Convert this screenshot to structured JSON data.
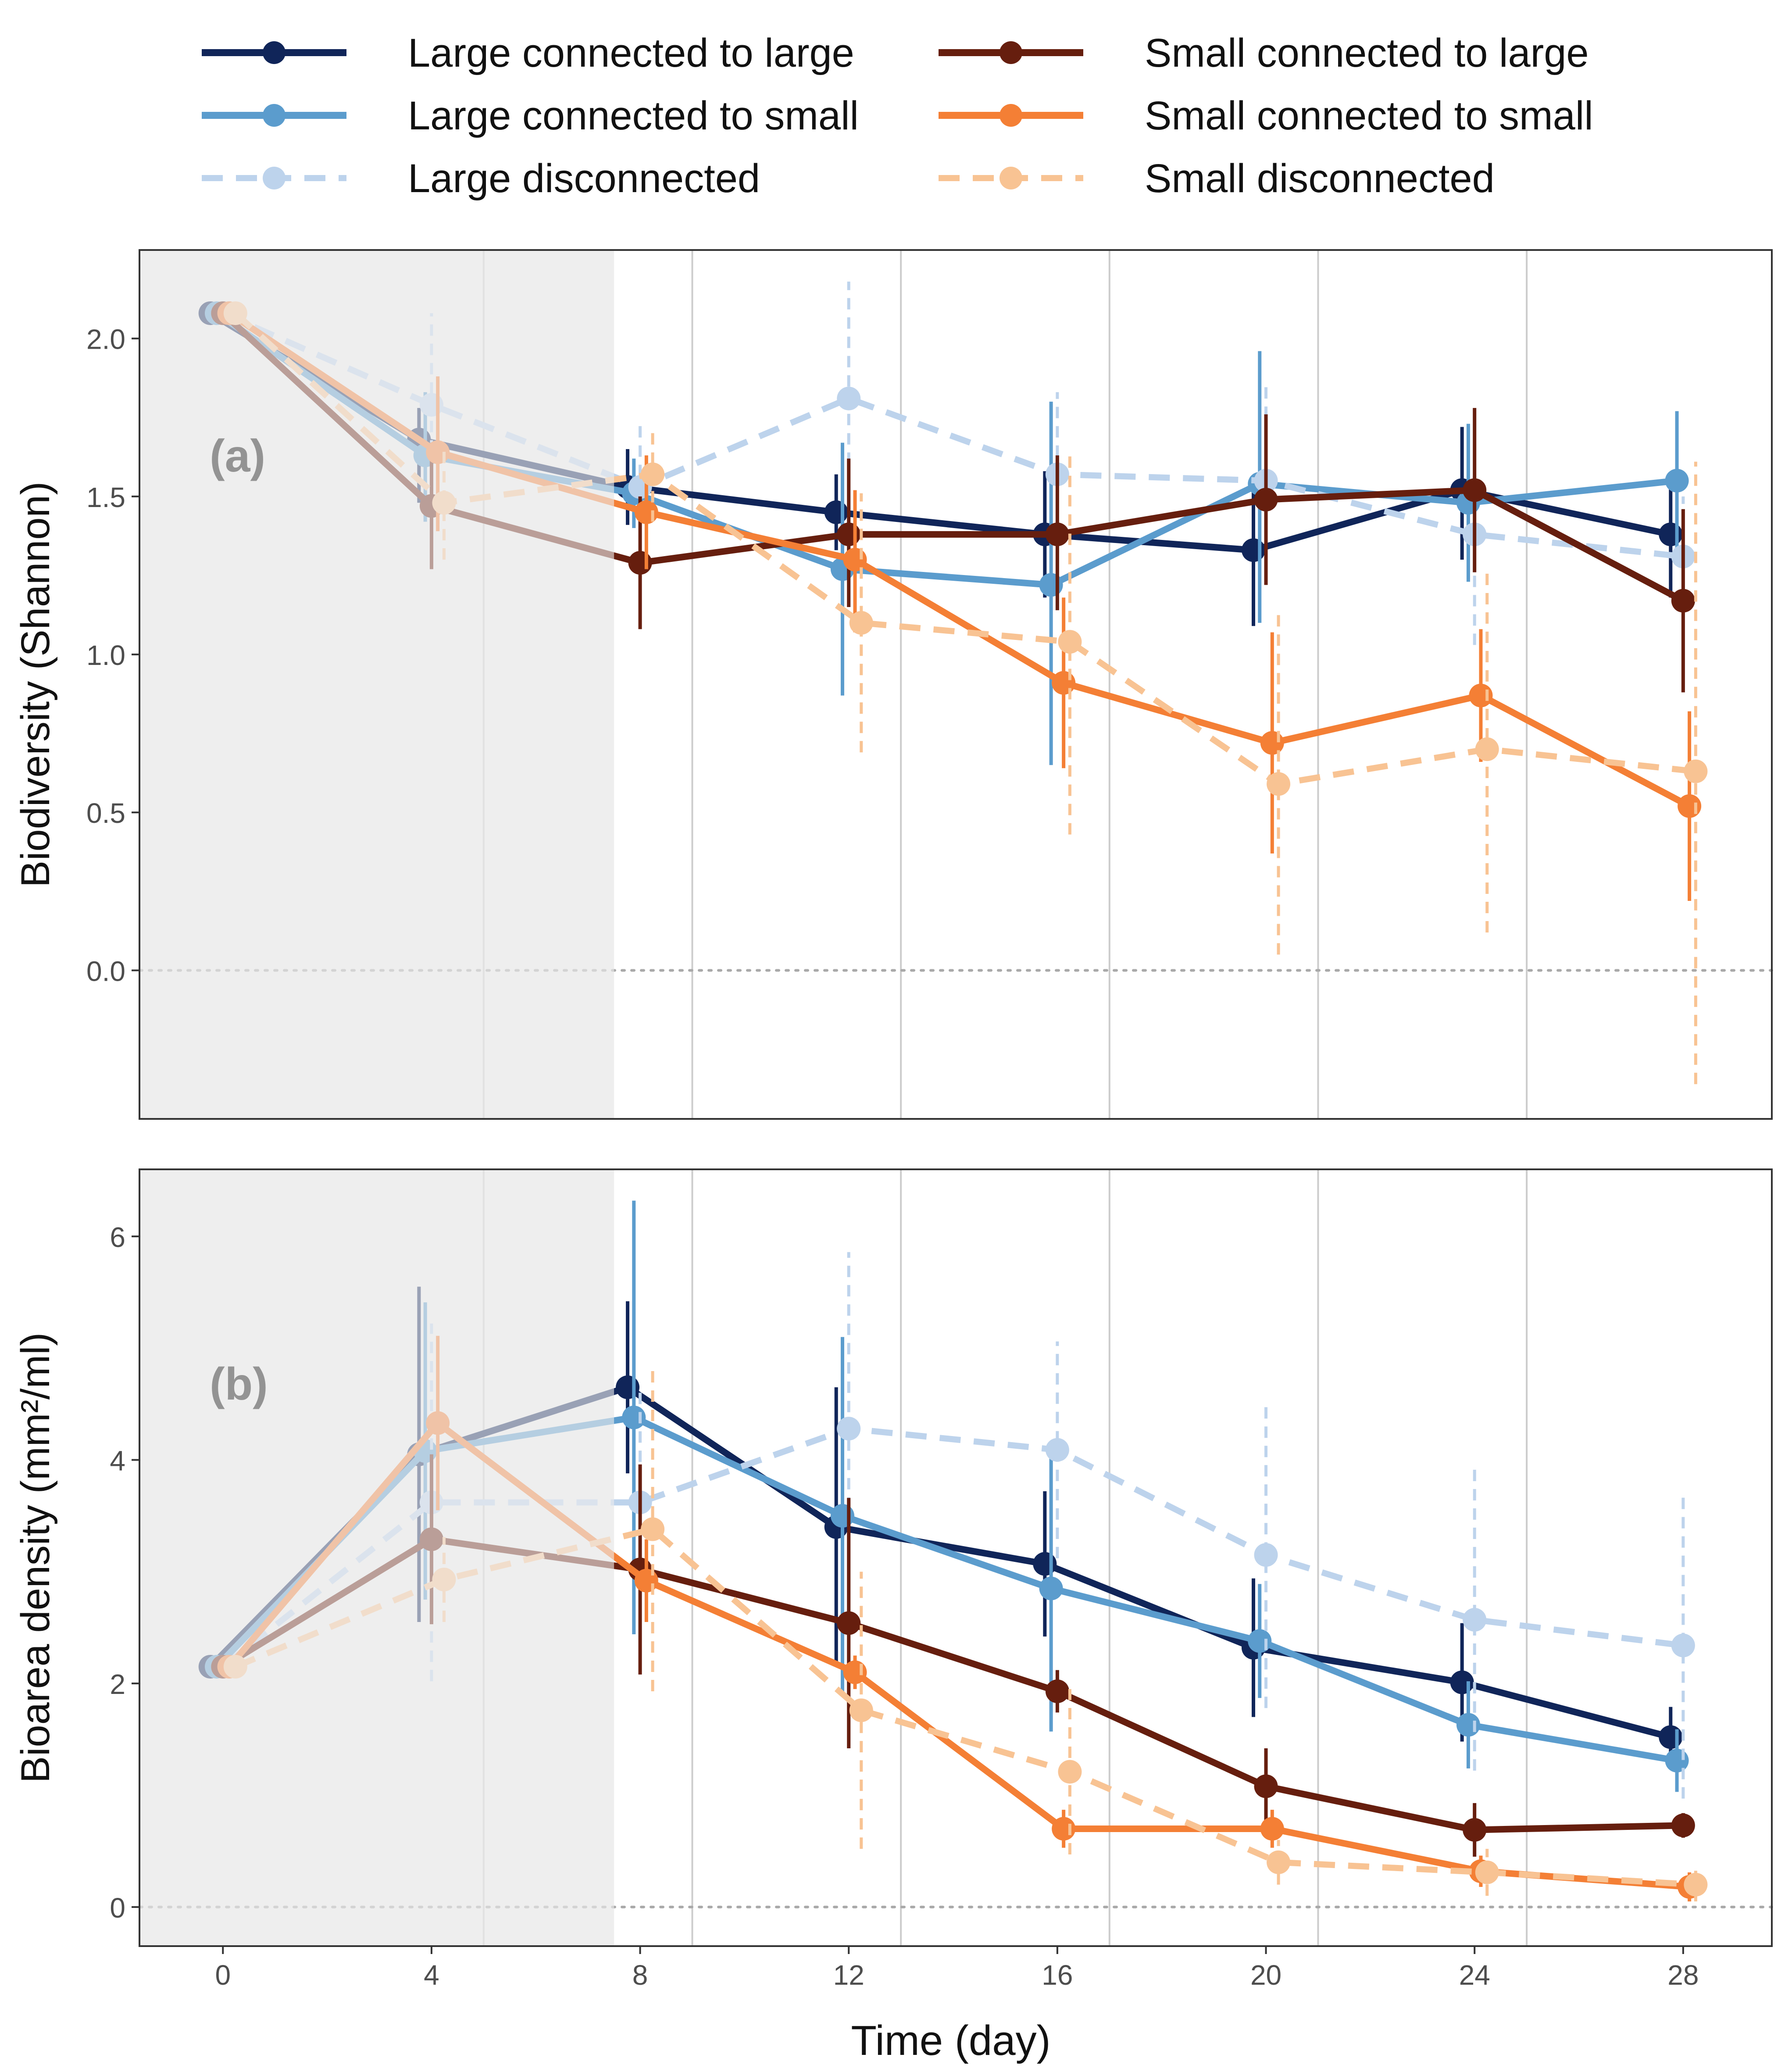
{
  "legend": {
    "entries": [
      {
        "key": "llarge",
        "label": "Large connected to large",
        "color": "#102559",
        "dashed": false
      },
      {
        "key": "lsmall",
        "label": "Large connected to small",
        "color": "#5b9ccd",
        "dashed": false
      },
      {
        "key": "ldisc",
        "label": "Large disconnected",
        "color": "#bdd3ec",
        "dashed": true
      },
      {
        "key": "slarge",
        "label": "Small connected to large",
        "color": "#661e0e",
        "dashed": false
      },
      {
        "key": "ssmall",
        "label": "Small connected to small",
        "color": "#f47f35",
        "dashed": false
      },
      {
        "key": "sdisc",
        "label": "Small disconnected",
        "color": "#f8c393",
        "dashed": true
      }
    ]
  },
  "shade": {
    "color": "#efefef",
    "x_end": 7.5
  },
  "vlines": [
    5,
    9,
    13,
    17,
    21,
    25
  ],
  "xaxis": {
    "label": "Time (day)",
    "ticks": [
      "0",
      "4",
      "8",
      "12",
      "16",
      "20",
      "24",
      "28"
    ],
    "lim": [
      -1.6,
      29.7
    ]
  },
  "chart_data": [
    {
      "type": "line",
      "panel_label": "(a)",
      "ylabel": "Biodiversity (Shannon)",
      "ylim": [
        -0.47,
        2.28
      ],
      "yticks": [
        "0.0",
        "0.5",
        "1.0",
        "1.5",
        "2.0"
      ],
      "x": [
        0,
        4,
        8,
        12,
        16,
        20,
        24,
        28
      ],
      "series": [
        {
          "key": "llarge",
          "name": "Large connected to large",
          "offset": -0.24,
          "values": [
            2.08,
            1.68,
            1.53,
            1.45,
            1.38,
            1.33,
            1.52,
            1.38
          ],
          "err_low": [
            2.08,
            1.48,
            1.41,
            1.33,
            1.18,
            1.09,
            1.3,
            1.18
          ],
          "err_high": [
            2.08,
            1.78,
            1.65,
            1.57,
            1.58,
            1.55,
            1.72,
            1.55
          ]
        },
        {
          "key": "lsmall",
          "name": "Large connected to small",
          "offset": -0.12,
          "values": [
            2.08,
            1.63,
            1.51,
            1.27,
            1.22,
            1.54,
            1.48,
            1.55
          ],
          "err_low": [
            2.08,
            1.42,
            1.4,
            0.87,
            0.65,
            1.1,
            1.23,
            1.33
          ],
          "err_high": [
            2.08,
            1.83,
            1.62,
            1.67,
            1.8,
            1.96,
            1.73,
            1.77
          ]
        },
        {
          "key": "ldisc",
          "name": "Large disconnected",
          "offset": 0.0,
          "values": [
            2.08,
            1.79,
            1.53,
            1.81,
            1.57,
            1.55,
            1.38,
            1.31
          ],
          "err_low": [
            2.08,
            1.52,
            1.32,
            1.42,
            1.32,
            1.26,
            1.03,
            1.11
          ],
          "err_high": [
            2.08,
            2.08,
            1.74,
            2.18,
            1.83,
            1.85,
            1.72,
            1.5
          ]
        },
        {
          "key": "slarge",
          "name": "Small connected to large",
          "offset": 0.0,
          "values": [
            2.08,
            1.47,
            1.29,
            1.38,
            1.38,
            1.49,
            1.52,
            1.17
          ],
          "err_low": [
            2.08,
            1.27,
            1.08,
            1.15,
            1.14,
            1.22,
            1.26,
            0.88
          ],
          "err_high": [
            2.08,
            1.67,
            1.5,
            1.62,
            1.63,
            1.76,
            1.78,
            1.46
          ]
        },
        {
          "key": "ssmall",
          "name": "Small connected to small",
          "offset": 0.12,
          "values": [
            2.08,
            1.64,
            1.45,
            1.3,
            0.91,
            0.72,
            0.87,
            0.52
          ],
          "err_low": [
            2.08,
            1.39,
            1.27,
            1.07,
            0.64,
            0.37,
            0.66,
            0.22
          ],
          "err_high": [
            2.08,
            1.88,
            1.63,
            1.52,
            1.18,
            1.07,
            1.08,
            0.82
          ]
        },
        {
          "key": "sdisc",
          "name": "Small disconnected",
          "offset": 0.24,
          "values": [
            2.08,
            1.48,
            1.57,
            1.1,
            1.04,
            0.59,
            0.7,
            0.63
          ],
          "err_low": [
            2.08,
            1.3,
            1.42,
            0.69,
            0.43,
            0.05,
            0.12,
            -0.36
          ],
          "err_high": [
            2.08,
            1.66,
            1.72,
            1.51,
            1.65,
            1.13,
            1.28,
            1.61
          ]
        }
      ]
    },
    {
      "type": "line",
      "panel_label": "(b)",
      "ylabel": "Bioarea density (mm²/ml)",
      "ylim": [
        -0.35,
        6.6
      ],
      "yticks": [
        "0",
        "2",
        "4",
        "6"
      ],
      "x": [
        0,
        4,
        8,
        12,
        16,
        20,
        24,
        28
      ],
      "series": [
        {
          "key": "llarge",
          "name": "Large connected to large",
          "offset": -0.24,
          "values": [
            2.15,
            4.05,
            4.65,
            3.4,
            3.07,
            2.32,
            2.01,
            1.52
          ],
          "err_low": [
            2.15,
            2.55,
            3.88,
            2.15,
            2.42,
            1.7,
            1.48,
            1.25
          ],
          "err_high": [
            2.15,
            5.55,
            5.42,
            4.65,
            3.72,
            2.94,
            2.54,
            1.79
          ]
        },
        {
          "key": "lsmall",
          "name": "Large connected to small",
          "offset": -0.12,
          "values": [
            2.15,
            4.08,
            4.38,
            3.5,
            2.85,
            2.38,
            1.63,
            1.31
          ],
          "err_low": [
            2.15,
            2.75,
            2.44,
            1.9,
            1.57,
            1.87,
            1.24,
            1.03
          ],
          "err_high": [
            2.15,
            5.41,
            6.32,
            5.1,
            4.13,
            2.89,
            2.02,
            1.59
          ]
        },
        {
          "key": "ldisc",
          "name": "Large disconnected",
          "offset": 0.0,
          "values": [
            2.15,
            3.62,
            3.62,
            4.28,
            4.09,
            3.15,
            2.57,
            2.34
          ],
          "err_low": [
            2.15,
            2.02,
            2.6,
            2.7,
            3.12,
            1.78,
            1.22,
            0.97
          ],
          "err_high": [
            2.15,
            5.22,
            4.64,
            5.86,
            5.06,
            4.52,
            3.92,
            3.71
          ]
        },
        {
          "key": "slarge",
          "name": "Small connected to large",
          "offset": 0.0,
          "values": [
            2.15,
            3.29,
            3.02,
            2.54,
            1.93,
            1.08,
            0.69,
            0.73
          ],
          "err_low": [
            2.15,
            2.53,
            2.08,
            1.42,
            1.74,
            0.74,
            0.45,
            0.62
          ],
          "err_high": [
            2.15,
            4.05,
            3.96,
            3.66,
            2.12,
            1.42,
            0.93,
            0.84
          ]
        },
        {
          "key": "ssmall",
          "name": "Small connected to small",
          "offset": 0.12,
          "values": [
            2.15,
            4.33,
            2.92,
            2.1,
            0.7,
            0.7,
            0.32,
            0.18
          ],
          "err_low": [
            2.15,
            3.55,
            2.55,
            1.95,
            0.53,
            0.53,
            0.18,
            0.05
          ],
          "err_high": [
            2.15,
            5.11,
            3.29,
            2.25,
            0.87,
            0.87,
            0.46,
            0.31
          ]
        },
        {
          "key": "sdisc",
          "name": "Small disconnected",
          "offset": 0.24,
          "values": [
            2.15,
            2.93,
            3.38,
            1.76,
            1.21,
            0.4,
            0.31,
            0.2
          ],
          "err_low": [
            2.15,
            2.55,
            1.93,
            0.52,
            0.47,
            0.2,
            0.1,
            0.05
          ],
          "err_high": [
            2.15,
            3.31,
            4.83,
            3.0,
            1.95,
            0.6,
            0.52,
            0.35
          ]
        }
      ]
    }
  ]
}
